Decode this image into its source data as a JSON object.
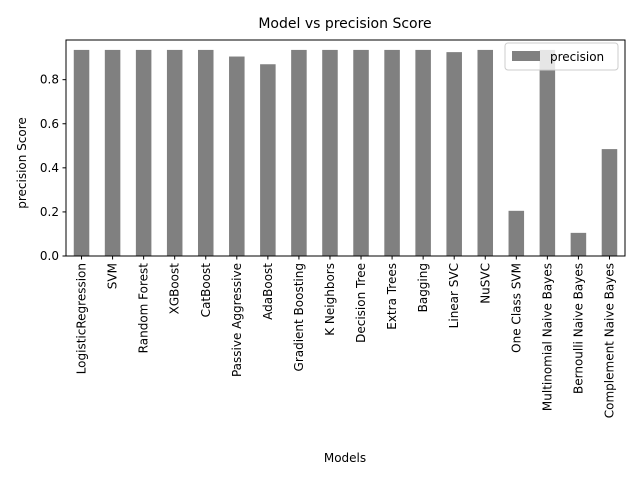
{
  "chart_data": {
    "type": "bar",
    "title": "Model vs precision Score",
    "xlabel": "Models",
    "ylabel": "precision Score",
    "categories": [
      "LogisticRegression",
      "SVM",
      "Random Forest",
      "XGBoost",
      "CatBoost",
      "Passive Aggressive",
      "AdaBoost",
      "Gradient Boosting",
      "K Neighbors",
      "Decision Tree",
      "Extra Trees",
      "Bagging",
      "Linear SVC",
      "NuSVC",
      "One Class SVM",
      "Multinomial Naive Bayes",
      "Bernoulli Naive Bayes",
      "Complement Naive Bayes"
    ],
    "series": [
      {
        "name": "precision",
        "color": "#808080",
        "values": [
          0.935,
          0.935,
          0.935,
          0.935,
          0.935,
          0.905,
          0.87,
          0.935,
          0.935,
          0.935,
          0.935,
          0.935,
          0.925,
          0.935,
          0.205,
          0.935,
          0.105,
          0.485
        ]
      }
    ],
    "ylim": [
      0,
      0.98
    ],
    "yticks": [
      0.0,
      0.2,
      0.4,
      0.6,
      0.8
    ],
    "yticklabels": [
      "0.0",
      "0.2",
      "0.4",
      "0.6",
      "0.8"
    ],
    "legend": {
      "position": "top-right",
      "labels": [
        "precision"
      ]
    },
    "grid": false
  }
}
